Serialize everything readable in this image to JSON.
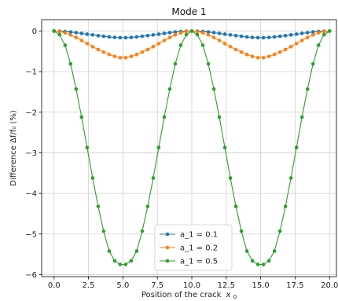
{
  "chart_data": {
    "type": "line",
    "title": "Mode 1",
    "xlabel": "Position of the crack",
    "xlabel_symbol": "x",
    "xlabel_subscript": "0",
    "ylabel": "Difference Δf/f₀ (%)",
    "xlim": [
      -0.9,
      20.5
    ],
    "ylim": [
      -6.05,
      0.28
    ],
    "xticks": [
      "0.0",
      "2.5",
      "5.0",
      "7.5",
      "10.0",
      "12.5",
      "15.0",
      "17.5",
      "20.0"
    ],
    "yticks": [
      "0",
      "−1",
      "−2",
      "−3",
      "−4",
      "−5",
      "−6"
    ],
    "grid": true,
    "legend_position": "lower-center",
    "x": [
      0,
      0.4,
      0.8,
      1.2,
      1.6,
      2,
      2.4,
      2.8,
      3.2,
      3.6,
      4,
      4.4,
      4.8,
      5.2,
      5.6,
      6,
      6.4,
      6.8,
      7.2,
      7.6,
      8,
      8.4,
      8.8,
      9.2,
      9.6,
      10,
      10.4,
      10.8,
      11.2,
      11.6,
      12,
      12.4,
      12.8,
      13.2,
      13.6,
      14,
      14.4,
      14.8,
      15.2,
      15.6,
      16,
      16.4,
      16.8,
      17.2,
      17.6,
      18,
      18.4,
      18.8,
      19.2,
      19.6,
      20
    ],
    "series": [
      {
        "name": "a_1 = 0.1",
        "color": "#1f77b4",
        "values": [
          0,
          -0.003,
          -0.012,
          -0.024,
          -0.04,
          -0.058,
          -0.077,
          -0.096,
          -0.114,
          -0.13,
          -0.145,
          -0.157,
          -0.164,
          -0.164,
          -0.157,
          -0.145,
          -0.13,
          -0.114,
          -0.096,
          -0.077,
          -0.058,
          -0.04,
          -0.024,
          -0.012,
          -0.003,
          0,
          -0.003,
          -0.012,
          -0.024,
          -0.04,
          -0.058,
          -0.077,
          -0.096,
          -0.114,
          -0.13,
          -0.145,
          -0.157,
          -0.164,
          -0.164,
          -0.157,
          -0.145,
          -0.13,
          -0.114,
          -0.096,
          -0.077,
          -0.058,
          -0.04,
          -0.024,
          -0.012,
          -0.003,
          0
        ]
      },
      {
        "name": "a_1 = 0.2",
        "color": "#ff7f0e",
        "values": [
          0,
          -0.012,
          -0.045,
          -0.095,
          -0.16,
          -0.233,
          -0.309,
          -0.385,
          -0.456,
          -0.521,
          -0.578,
          -0.626,
          -0.657,
          -0.657,
          -0.626,
          -0.578,
          -0.521,
          -0.456,
          -0.385,
          -0.309,
          -0.233,
          -0.16,
          -0.095,
          -0.045,
          -0.012,
          0,
          -0.012,
          -0.045,
          -0.095,
          -0.16,
          -0.233,
          -0.309,
          -0.385,
          -0.456,
          -0.521,
          -0.578,
          -0.626,
          -0.657,
          -0.657,
          -0.626,
          -0.578,
          -0.521,
          -0.456,
          -0.385,
          -0.309,
          -0.233,
          -0.16,
          -0.095,
          -0.045,
          -0.012,
          0
        ]
      },
      {
        "name": "a_1 = 0.5",
        "color": "#2ca02c",
        "values": [
          0,
          -0.09,
          -0.35,
          -0.81,
          -1.43,
          -2.12,
          -2.87,
          -3.62,
          -4.32,
          -4.93,
          -5.42,
          -5.66,
          -5.75,
          -5.75,
          -5.66,
          -5.42,
          -4.93,
          -4.32,
          -3.62,
          -2.87,
          -2.12,
          -1.43,
          -0.81,
          -0.35,
          -0.09,
          0,
          -0.09,
          -0.35,
          -0.81,
          -1.43,
          -2.12,
          -2.87,
          -3.62,
          -4.32,
          -4.93,
          -5.42,
          -5.66,
          -5.75,
          -5.75,
          -5.66,
          -5.42,
          -4.93,
          -4.32,
          -3.62,
          -2.87,
          -2.12,
          -1.43,
          -0.81,
          -0.35,
          -0.09,
          0
        ]
      }
    ]
  }
}
